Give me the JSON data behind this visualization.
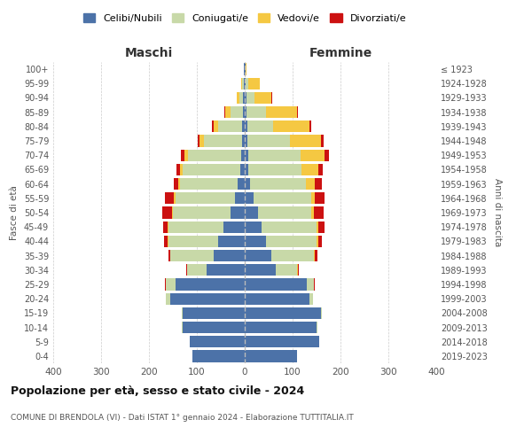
{
  "age_groups": [
    "0-4",
    "5-9",
    "10-14",
    "15-19",
    "20-24",
    "25-29",
    "30-34",
    "35-39",
    "40-44",
    "45-49",
    "50-54",
    "55-59",
    "60-64",
    "65-69",
    "70-74",
    "75-79",
    "80-84",
    "85-89",
    "90-94",
    "95-99",
    "100+"
  ],
  "birth_years": [
    "2019-2023",
    "2014-2018",
    "2009-2013",
    "2004-2008",
    "1999-2003",
    "1994-1998",
    "1989-1993",
    "1984-1988",
    "1979-1983",
    "1974-1978",
    "1969-1973",
    "1964-1968",
    "1959-1963",
    "1954-1958",
    "1949-1953",
    "1944-1948",
    "1939-1943",
    "1934-1938",
    "1929-1933",
    "1924-1928",
    "≤ 1923"
  ],
  "maschi": {
    "celibi": [
      110,
      115,
      130,
      130,
      155,
      145,
      80,
      65,
      55,
      45,
      30,
      20,
      15,
      10,
      8,
      6,
      5,
      4,
      3,
      2,
      1
    ],
    "coniugati": [
      0,
      0,
      1,
      2,
      10,
      20,
      40,
      90,
      105,
      115,
      120,
      125,
      120,
      120,
      110,
      80,
      50,
      25,
      8,
      3,
      1
    ],
    "vedovi": [
      0,
      0,
      0,
      0,
      0,
      0,
      0,
      0,
      1,
      1,
      2,
      3,
      4,
      5,
      8,
      8,
      10,
      12,
      5,
      2,
      0
    ],
    "divorziati": [
      0,
      0,
      0,
      0,
      0,
      1,
      2,
      5,
      8,
      10,
      20,
      18,
      10,
      8,
      8,
      5,
      3,
      1,
      0,
      0,
      0
    ]
  },
  "femmine": {
    "nubili": [
      110,
      155,
      150,
      160,
      135,
      130,
      65,
      55,
      45,
      35,
      28,
      18,
      12,
      8,
      7,
      5,
      5,
      4,
      3,
      2,
      1
    ],
    "coniugate": [
      0,
      0,
      1,
      2,
      8,
      15,
      45,
      90,
      105,
      115,
      110,
      120,
      115,
      110,
      110,
      90,
      55,
      40,
      18,
      5,
      1
    ],
    "vedove": [
      0,
      0,
      0,
      0,
      0,
      0,
      1,
      2,
      3,
      4,
      6,
      8,
      20,
      35,
      50,
      65,
      75,
      65,
      35,
      25,
      2
    ],
    "divorziate": [
      0,
      0,
      0,
      0,
      0,
      1,
      2,
      5,
      8,
      12,
      20,
      20,
      15,
      10,
      8,
      5,
      3,
      2,
      1,
      0,
      0
    ]
  },
  "colors": {
    "celibi_nubili": "#4c72a8",
    "coniugati": "#c8d9a8",
    "vedovi": "#f5c842",
    "divorziati": "#cc1111"
  },
  "xlim": 400,
  "title": "Popolazione per età, sesso e stato civile - 2024",
  "subtitle": "COMUNE DI BRENDOLA (VI) - Dati ISTAT 1° gennaio 2024 - Elaborazione TUTTITALIA.IT",
  "ylabel_left": "Fasce di età",
  "ylabel_right": "Anni di nascita",
  "xlabel_left": "Maschi",
  "xlabel_right": "Femmine"
}
